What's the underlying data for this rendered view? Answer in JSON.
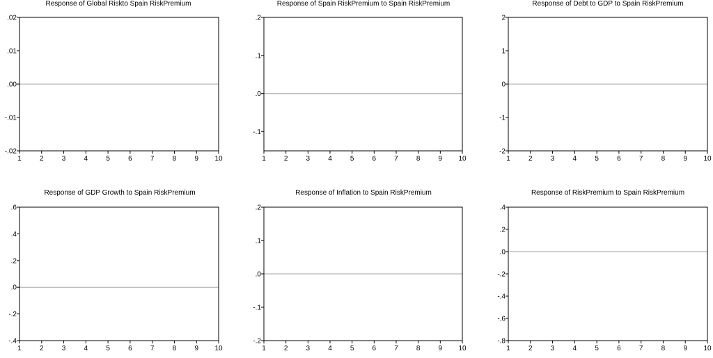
{
  "chart_data": [
    {
      "type": "line",
      "title": "Response of Global Riskto Spain RiskPremium",
      "x": [
        1,
        2,
        3,
        4,
        5,
        6,
        7,
        8,
        9,
        10
      ],
      "xlim": [
        1,
        10
      ],
      "ylim": [
        -0.02,
        0.02
      ],
      "yticks": [
        -0.02,
        -0.01,
        0.0,
        0.01,
        0.02
      ],
      "ytick_labels": [
        "-.02",
        "-.01",
        ".00",
        ".01",
        ".02"
      ],
      "zero_line": 0,
      "series": []
    },
    {
      "type": "line",
      "title": "Response of Spain RiskPremium to Spain RiskPremium",
      "x": [
        1,
        2,
        3,
        4,
        5,
        6,
        7,
        8,
        9,
        10
      ],
      "xlim": [
        1,
        10
      ],
      "ylim": [
        -0.15,
        0.2
      ],
      "yticks": [
        -0.1,
        0.0,
        0.1,
        0.2
      ],
      "ytick_labels": [
        "-.1",
        ".0",
        ".1",
        ".2"
      ],
      "zero_line": 0,
      "series": []
    },
    {
      "type": "line",
      "title": "Response of Debt to GDP to Spain RiskPremium",
      "x": [
        1,
        2,
        3,
        4,
        5,
        6,
        7,
        8,
        9,
        10
      ],
      "xlim": [
        1,
        10
      ],
      "ylim": [
        -2,
        2
      ],
      "yticks": [
        -2,
        -1,
        0,
        1,
        2
      ],
      "ytick_labels": [
        "-2",
        "-1",
        "0",
        "1",
        "2"
      ],
      "zero_line": 0,
      "series": []
    },
    {
      "type": "line",
      "title": "Response of GDP Growth to Spain RiskPremium",
      "x": [
        1,
        2,
        3,
        4,
        5,
        6,
        7,
        8,
        9,
        10
      ],
      "xlim": [
        1,
        10
      ],
      "ylim": [
        -0.4,
        0.6
      ],
      "yticks": [
        -0.4,
        -0.2,
        0.0,
        0.2,
        0.4,
        0.6
      ],
      "ytick_labels": [
        "-.4",
        "-.2",
        ".0",
        ".2",
        ".4",
        ".6"
      ],
      "zero_line": 0,
      "series": []
    },
    {
      "type": "line",
      "title": "Response of Inflation to Spain RiskPremium",
      "x": [
        1,
        2,
        3,
        4,
        5,
        6,
        7,
        8,
        9,
        10
      ],
      "xlim": [
        1,
        10
      ],
      "ylim": [
        -0.2,
        0.2
      ],
      "yticks": [
        -0.2,
        -0.1,
        0.0,
        0.1,
        0.2
      ],
      "ytick_labels": [
        "-.2",
        "-.1",
        ".0",
        ".1",
        ".2"
      ],
      "zero_line": 0,
      "series": []
    },
    {
      "type": "line",
      "title": "Response of RiskPremium to Spain RiskPremium",
      "x": [
        1,
        2,
        3,
        4,
        5,
        6,
        7,
        8,
        9,
        10
      ],
      "xlim": [
        1,
        10
      ],
      "ylim": [
        -0.8,
        0.4
      ],
      "yticks": [
        -0.8,
        -0.6,
        -0.4,
        -0.2,
        0.0,
        0.2,
        0.4
      ],
      "ytick_labels": [
        "-.8",
        "-.6",
        "-.4",
        "-.2",
        ".0",
        ".2",
        ".4"
      ],
      "zero_line": 0,
      "series": []
    }
  ]
}
